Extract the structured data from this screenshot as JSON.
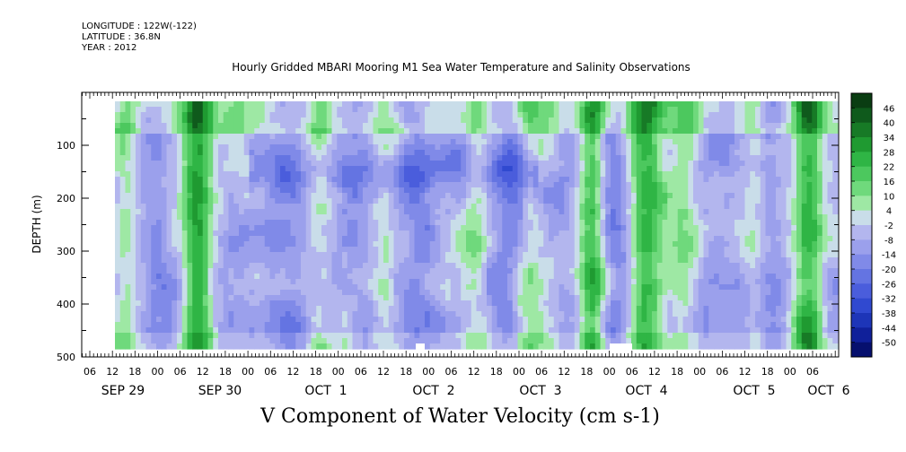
{
  "header": {
    "longitude": "LONGITUDE : 122W(-122)",
    "latitude": "LATITUDE : 36.8N",
    "year": "YEAR : 2012"
  },
  "chart_data": {
    "type": "heatmap",
    "title": "Hourly Gridded MBARI Mooring M1 Sea Water Temperature and Salinity Observations",
    "xlabel": "V Component of Water Velocity (cm s-1)",
    "ylabel": "DEPTH (m)",
    "ylim": [
      500,
      0
    ],
    "y_ticks": [
      100,
      200,
      300,
      400,
      500
    ],
    "x_hour_ticks": [
      "06",
      "12",
      "18",
      "00",
      "06",
      "12",
      "18",
      "00",
      "06",
      "12",
      "18",
      "00",
      "06",
      "12",
      "18",
      "00",
      "06",
      "12",
      "18",
      "00",
      "06",
      "12",
      "18",
      "00",
      "06",
      "12",
      "18",
      "00",
      "06",
      "12",
      "18",
      "00",
      "06"
    ],
    "x_day_labels": [
      "SEP 29",
      "SEP 30",
      "OCT  1",
      "OCT  2",
      "OCT  3",
      "OCT  4",
      "OCT  5",
      "OCT  6"
    ],
    "colorbar": {
      "labels": [
        "46",
        "40",
        "34",
        "28",
        "22",
        "16",
        "10",
        "4",
        "-2",
        "-8",
        "-14",
        "-20",
        "-26",
        "-32",
        "-38",
        "-44",
        "-50"
      ],
      "colors": [
        "#0a3d12",
        "#0f5a1c",
        "#177a26",
        "#1f9a31",
        "#2fb545",
        "#4cc85e",
        "#6fd97c",
        "#9ee8a4",
        "#c9dde9",
        "#b3b6ee",
        "#9ba0ec",
        "#808ae8",
        "#6474e2",
        "#4a5ddc",
        "#3049d0",
        "#1d35b8",
        "#10209a",
        "#06106e"
      ]
    },
    "v_component_profiles": {
      "time_hours_from_sep28_00": [
        12,
        18,
        24,
        30,
        36,
        42,
        48,
        54,
        60,
        66,
        72,
        78,
        84,
        90,
        96,
        102,
        108,
        114,
        120,
        126,
        132,
        138,
        144,
        150,
        156,
        162,
        168,
        174,
        180,
        186,
        192,
        198,
        204,
        210,
        216
      ],
      "depth_m": [
        20,
        60,
        100,
        140,
        180,
        220,
        260,
        300,
        340,
        380,
        420,
        460,
        486
      ]
    }
  }
}
